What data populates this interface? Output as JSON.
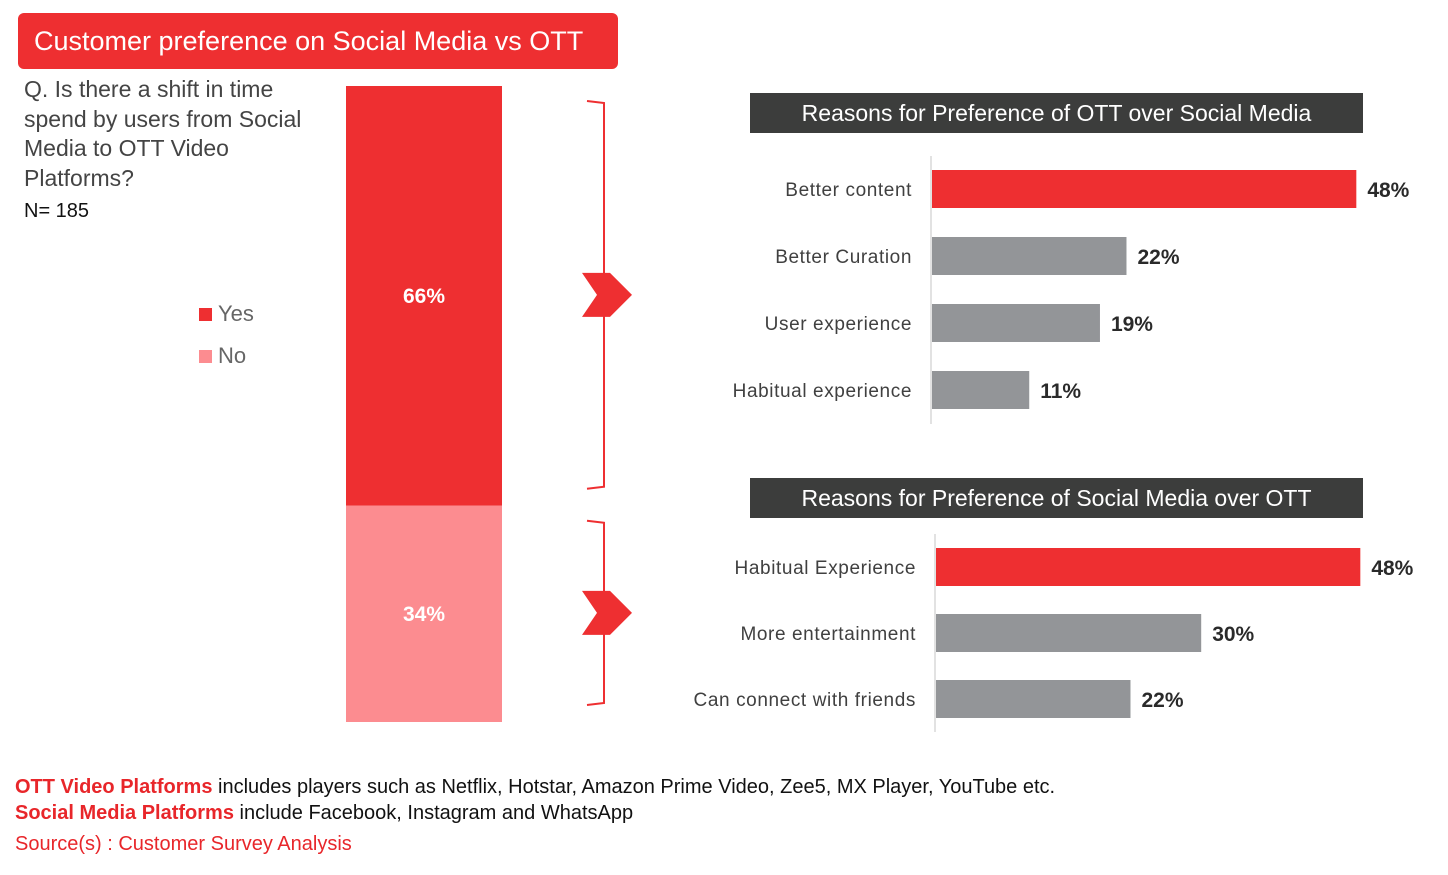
{
  "title": "Customer preference on Social Media vs OTT",
  "question": "Q. Is there a shift in time spend by users from Social Media to OTT Video Platforms?",
  "sample_size": "N= 185",
  "colors": {
    "red": "#ee2f31",
    "pink": "#fc8c90",
    "gray": "#939598",
    "header": "#3c3d3c"
  },
  "chart_data": [
    {
      "type": "bar",
      "stacked": true,
      "categories": [
        ""
      ],
      "series": [
        {
          "name": "Yes",
          "values": [
            66
          ],
          "label": "66%"
        },
        {
          "name": "No",
          "values": [
            34
          ],
          "label": "34%"
        }
      ],
      "legend": "left"
    },
    {
      "type": "bar",
      "orientation": "horizontal",
      "title": "Reasons for Preference of OTT over Social Media",
      "categories": [
        "Better content",
        "Better Curation",
        "User experience",
        "Habitual experience"
      ],
      "values": [
        48,
        22,
        19,
        11
      ],
      "labels": [
        "48%",
        "22%",
        "19%",
        "11%"
      ],
      "highlight_index": 0
    },
    {
      "type": "bar",
      "orientation": "horizontal",
      "title": "Reasons for Preference of Social Media over OTT",
      "categories": [
        "Habitual Experience",
        "More entertainment",
        "Can connect with friends"
      ],
      "values": [
        48,
        30,
        22
      ],
      "labels": [
        "48%",
        "30%",
        "22%"
      ],
      "highlight_index": 0
    }
  ],
  "footnotes": [
    {
      "highlight": "OTT Video Platforms",
      "text": " includes players such as Netflix, Hotstar, Amazon Prime Video, Zee5, MX Player, YouTube etc."
    },
    {
      "highlight": "Social Media Platforms",
      "text": " include Facebook, Instagram and WhatsApp"
    }
  ],
  "source": "Source(s) : Customer Survey Analysis"
}
